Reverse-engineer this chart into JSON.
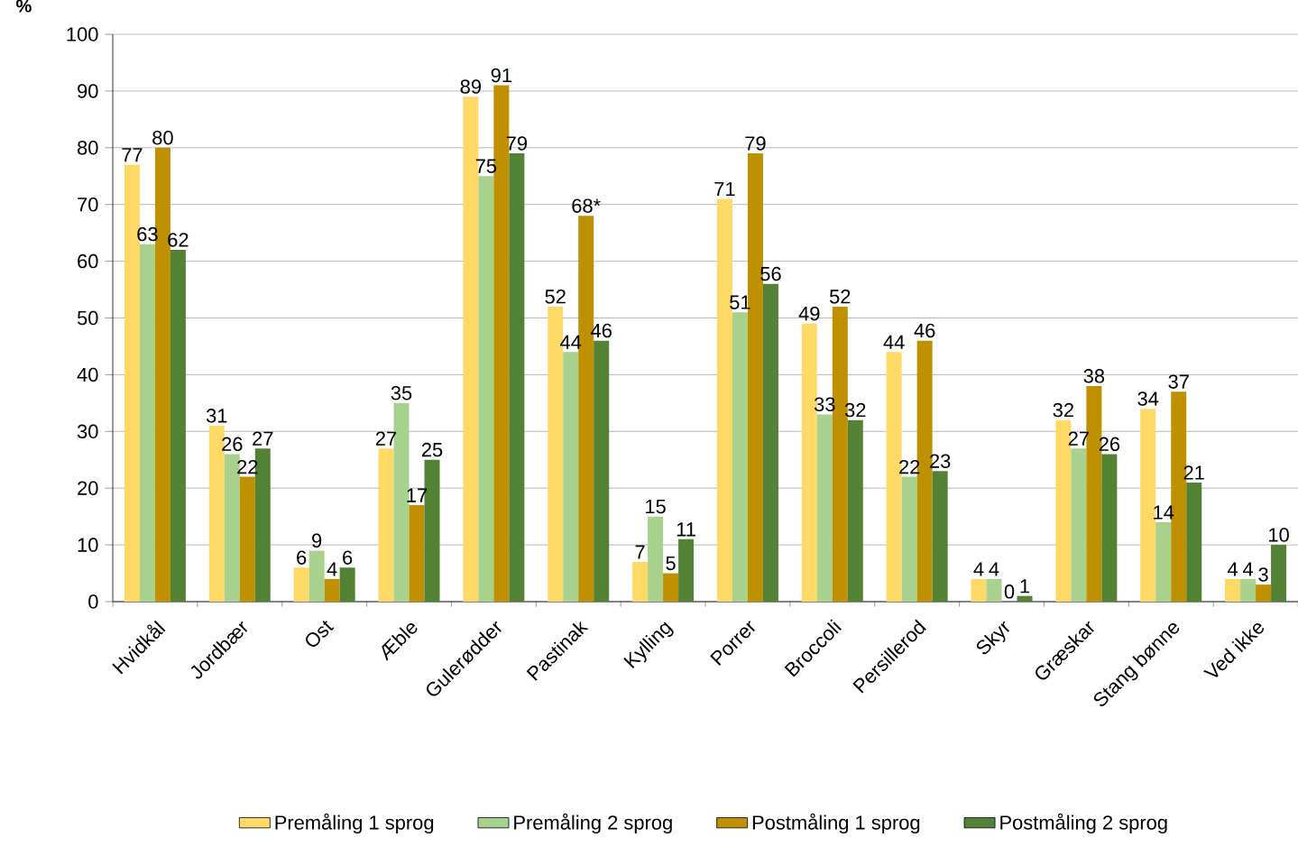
{
  "chart_data": {
    "type": "bar",
    "ylabel": "%",
    "categories": [
      "Hvidkål",
      "Jordbær",
      "Ost",
      "Æble",
      "Gulerødder",
      "Pastinak",
      "Kylling",
      "Porrer",
      "Broccoli",
      "Persillerod",
      "Skyr",
      "Græskar",
      "Stang bønne",
      "Ved ikke"
    ],
    "series": [
      {
        "name": "Premåling 1 sprog",
        "color": "#ffd966",
        "values": [
          77,
          31,
          6,
          27,
          89,
          52,
          7,
          71,
          49,
          44,
          4,
          32,
          34,
          4
        ],
        "value_labels": [
          "77",
          "31",
          "6",
          "27",
          "89",
          "52",
          "7",
          "71",
          "49",
          "44",
          "4",
          "32",
          "34",
          "4"
        ]
      },
      {
        "name": "Premåling 2 sprog",
        "color": "#a9d18e",
        "values": [
          63,
          26,
          9,
          35,
          75,
          44,
          15,
          51,
          33,
          22,
          4,
          27,
          14,
          4
        ],
        "value_labels": [
          "63",
          "26",
          "9",
          "35",
          "75",
          "44",
          "15",
          "51",
          "33",
          "22",
          "4",
          "27",
          "14",
          "4"
        ]
      },
      {
        "name": "Postmåling 1 sprog",
        "color": "#bf9000",
        "values": [
          80,
          22,
          4,
          17,
          91,
          68,
          5,
          79,
          52,
          46,
          0,
          38,
          37,
          3
        ],
        "value_labels": [
          "80",
          "22",
          "4",
          "17",
          "91",
          "68*",
          "5",
          "79",
          "52",
          "46",
          "0",
          "38",
          "37",
          "3"
        ]
      },
      {
        "name": "Postmåling 2 sprog",
        "color": "#548235",
        "values": [
          62,
          27,
          6,
          25,
          79,
          46,
          11,
          56,
          32,
          23,
          1,
          26,
          21,
          10
        ],
        "value_labels": [
          "62",
          "27",
          "6",
          "25",
          "79",
          "46",
          "11",
          "56",
          "32",
          "23",
          "1",
          "26",
          "21",
          "10"
        ]
      }
    ],
    "ylim": [
      0,
      100
    ],
    "yticks": [
      0,
      10,
      20,
      30,
      40,
      50,
      60,
      70,
      80,
      90,
      100
    ],
    "grid": "y",
    "legend": "bottom"
  }
}
